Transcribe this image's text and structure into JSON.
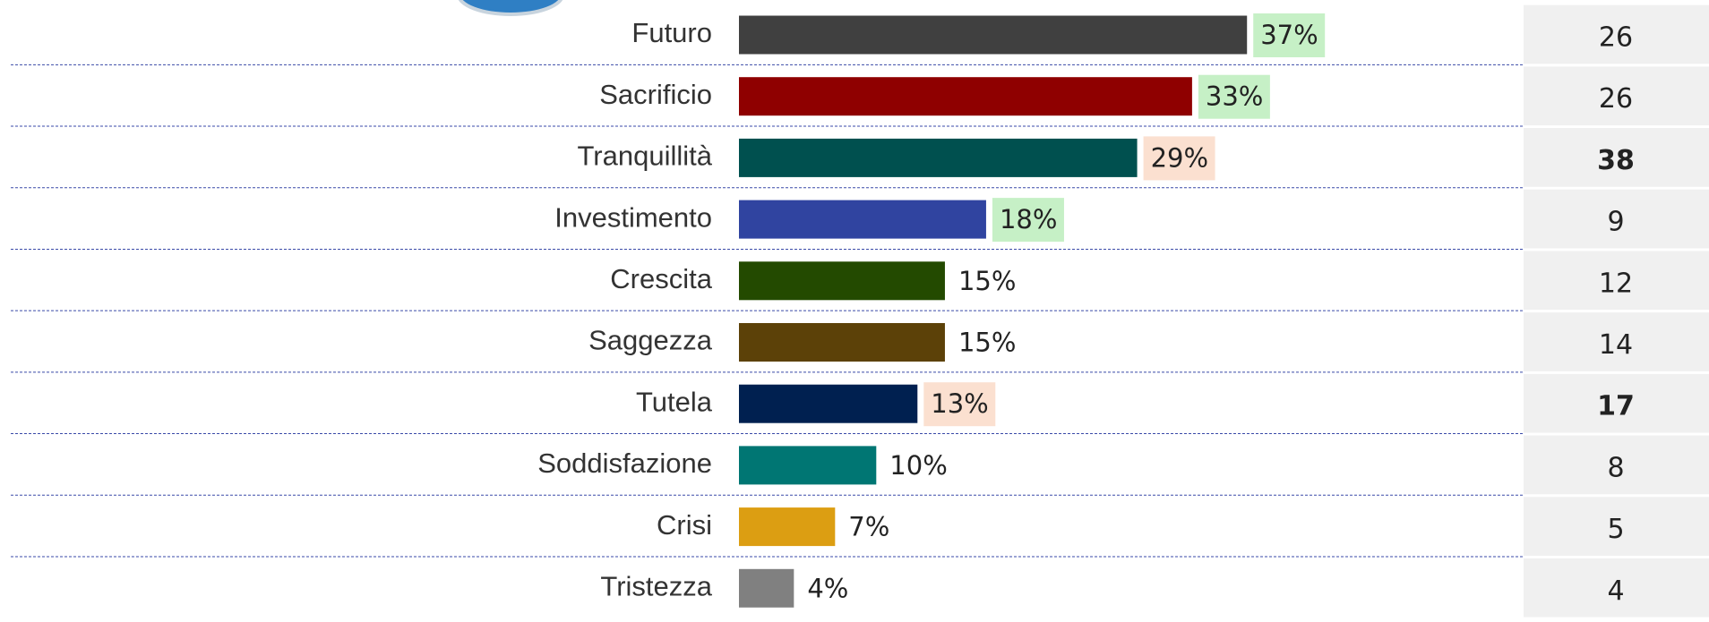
{
  "chart_data": {
    "type": "bar",
    "categories": [
      "Futuro",
      "Sacrificio",
      "Tranquillità",
      "Investimento",
      "Crescita",
      "Saggezza",
      "Tutela",
      "Soddisfazione",
      "Crisi",
      "Tristezza"
    ],
    "values": [
      37,
      33,
      29,
      18,
      15,
      15,
      13,
      10,
      7,
      4
    ],
    "value_labels": [
      "37%",
      "33%",
      "29%",
      "18%",
      "15%",
      "15%",
      "13%",
      "10%",
      "7%",
      "4%"
    ],
    "colors": [
      "#404040",
      "#8f0000",
      "#00504f",
      "#3044a0",
      "#234a00",
      "#5c4108",
      "#002050",
      "#007673",
      "#dc9e12",
      "#808080"
    ],
    "label_highlight": [
      "#c6f0c6",
      "#c6f0c6",
      "#fbe0d0",
      "#c6f0c6",
      null,
      null,
      "#fbe0d0",
      null,
      null,
      null
    ],
    "side_values": [
      26,
      26,
      38,
      9,
      12,
      14,
      17,
      8,
      5,
      4
    ],
    "side_bold": [
      false,
      false,
      true,
      false,
      false,
      false,
      true,
      false,
      false,
      false
    ]
  }
}
